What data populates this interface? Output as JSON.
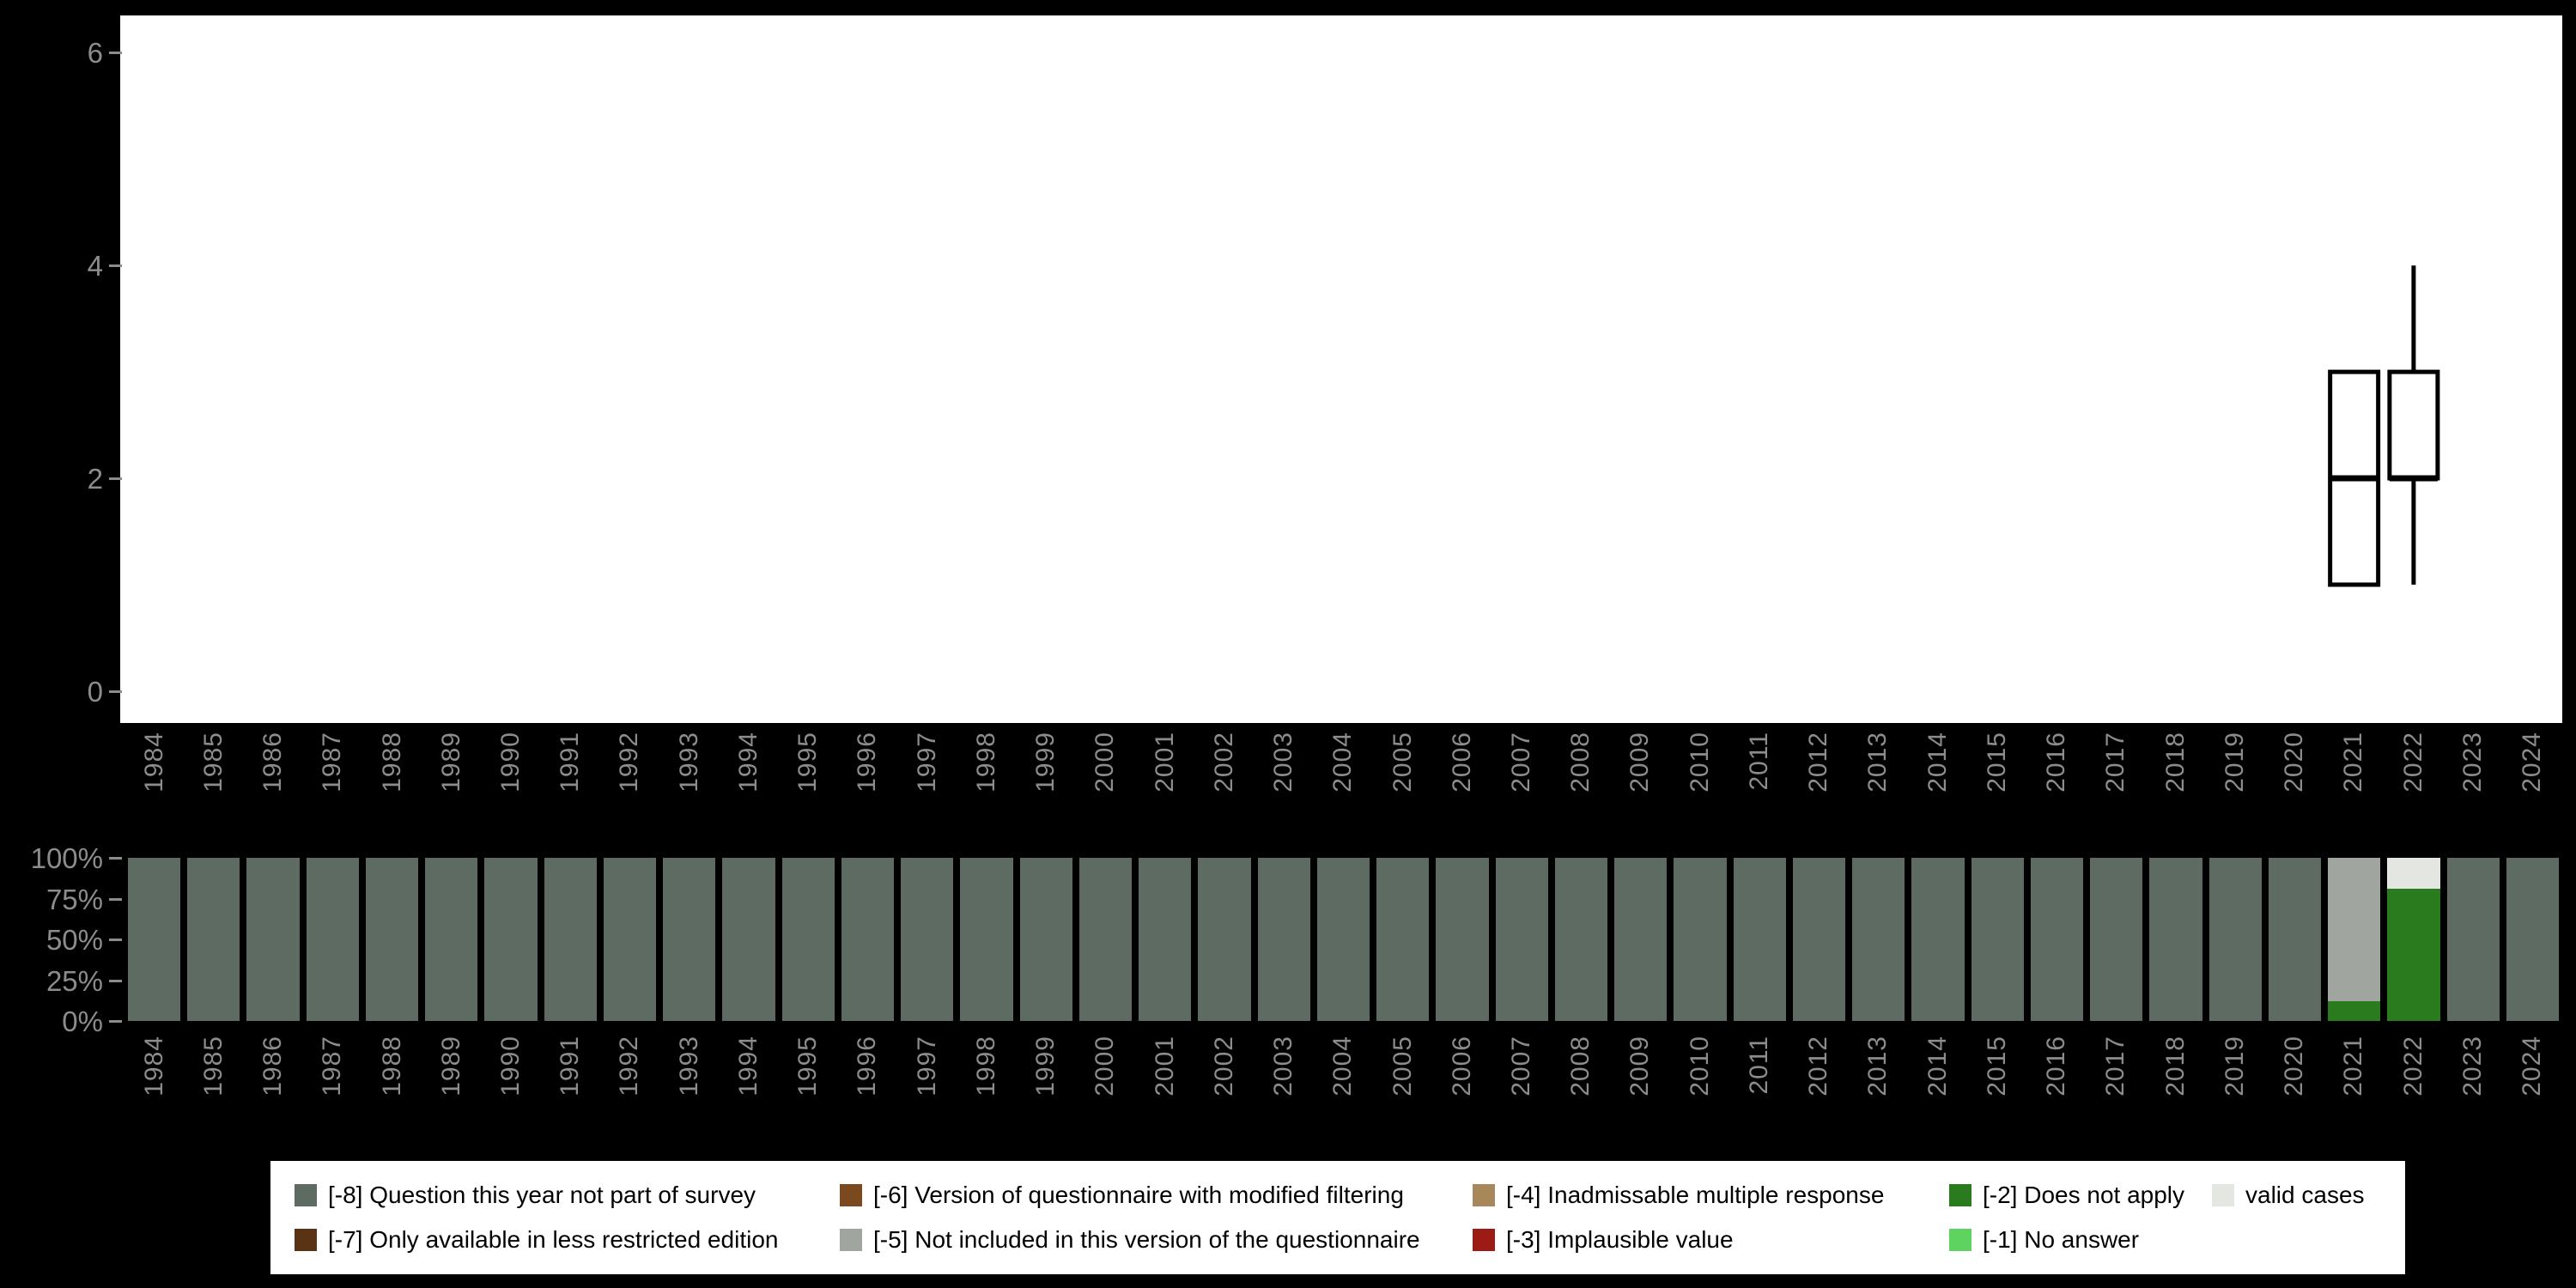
{
  "background": "#000000",
  "panel_bg": "#ffffff",
  "axis_label_color": "#8c8c8c",
  "years": [
    1984,
    1985,
    1986,
    1987,
    1988,
    1989,
    1990,
    1991,
    1992,
    1993,
    1994,
    1995,
    1996,
    1997,
    1998,
    1999,
    2000,
    2001,
    2002,
    2003,
    2004,
    2005,
    2006,
    2007,
    2008,
    2009,
    2010,
    2011,
    2012,
    2013,
    2014,
    2015,
    2016,
    2017,
    2018,
    2019,
    2020,
    2021,
    2022,
    2023,
    2024
  ],
  "chart_data": [
    {
      "type": "boxplot",
      "title": "",
      "xlabel": "",
      "ylabel": "",
      "ylim": [
        -0.3,
        6.35
      ],
      "yticks": [
        {
          "label": "0",
          "value": 0
        },
        {
          "label": "2",
          "value": 2
        },
        {
          "label": "4",
          "value": 4
        },
        {
          "label": "6",
          "value": 6
        }
      ],
      "grid": false,
      "boxes": [
        {
          "year": 2021,
          "min": 1,
          "q1": 1,
          "median": 2,
          "q3": 3,
          "max": 3
        },
        {
          "year": 2022,
          "min": 1,
          "q1": 2,
          "median": 2,
          "q3": 3,
          "max": 4
        }
      ]
    },
    {
      "type": "bar",
      "stacked_percent": true,
      "title": "",
      "xlabel": "",
      "ylabel": "",
      "yticks": [
        {
          "label": "100%",
          "value": 100
        },
        {
          "label": "75%",
          "value": 75
        },
        {
          "label": "50%",
          "value": 50
        },
        {
          "label": "25%",
          "value": 25
        },
        {
          "label": "0%",
          "value": 0
        }
      ],
      "default_segments": [
        {
          "code": "[-8]",
          "pct": 100
        }
      ],
      "year_overrides": {
        "2021": [
          {
            "code": "[-2]",
            "pct": 12
          },
          {
            "code": "[-5]",
            "pct": 88
          }
        ],
        "2022": [
          {
            "code": "[-2]",
            "pct": 81
          },
          {
            "code": "valid",
            "pct": 19
          }
        ]
      }
    }
  ],
  "colors": {
    "[-8]": "#5d6b62",
    "[-7]": "#5a3214",
    "[-6]": "#7a4a1e",
    "[-5]": "#a0a69f",
    "[-4]": "#a8875a",
    "[-3]": "#9e1a15",
    "[-2]": "#2a7a1e",
    "[-1]": "#5fd35f",
    "valid": "#e4e6e1"
  },
  "legend": {
    "rows": [
      [
        {
          "code": "[-8]",
          "label": "[-8] Question this year not part of survey"
        },
        {
          "code": "[-6]",
          "label": "[-6] Version of questionnaire with modified filtering"
        },
        {
          "code": "[-4]",
          "label": "[-4] Inadmissable multiple response"
        },
        {
          "code": "[-2]",
          "label": "[-2] Does not apply"
        },
        {
          "code": "valid",
          "label": "valid cases"
        }
      ],
      [
        {
          "code": "[-7]",
          "label": "[-7] Only available in less restricted edition"
        },
        {
          "code": "[-5]",
          "label": "[-5] Not included in this version of the questionnaire"
        },
        {
          "code": "[-3]",
          "label": "[-3] Implausible value"
        },
        {
          "code": "[-1]",
          "label": "[-1] No answer"
        }
      ]
    ]
  }
}
